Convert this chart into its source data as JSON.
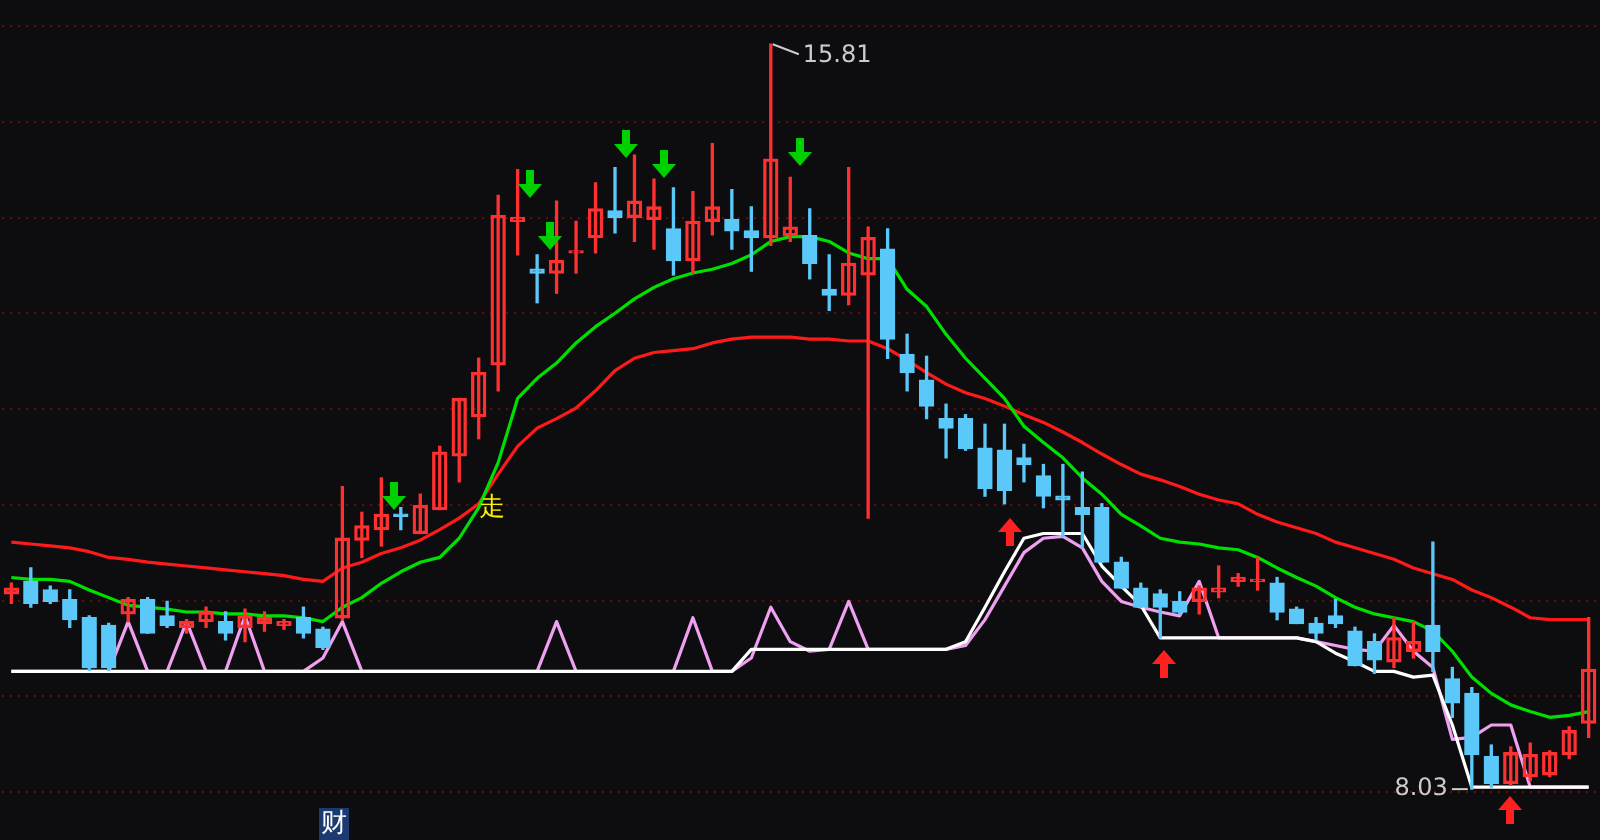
{
  "chart_data": {
    "type": "candlestick",
    "categories": [
      null,
      null,
      null,
      null,
      null,
      null,
      null,
      null,
      null,
      null,
      null,
      null,
      null,
      null,
      null,
      null,
      null,
      null,
      null,
      null,
      null,
      null,
      null,
      null,
      null,
      null,
      null,
      null,
      null,
      null,
      null,
      null,
      null,
      null,
      null,
      null,
      null,
      null,
      null,
      null,
      null,
      null,
      null,
      null,
      null,
      null,
      null,
      null,
      null,
      null,
      null,
      null,
      null,
      null,
      null,
      null,
      null,
      null,
      null,
      null,
      null,
      null,
      null,
      null,
      null,
      null,
      null,
      null,
      null,
      null,
      null,
      null,
      null,
      null,
      null,
      null,
      null,
      null,
      null,
      null,
      null,
      null
    ],
    "ohlc": [
      [
        10.07,
        10.18,
        9.97,
        10.13
      ],
      [
        10.2,
        10.34,
        9.93,
        9.97
      ],
      [
        10.11,
        10.15,
        9.97,
        9.99
      ],
      [
        10.01,
        10.11,
        9.72,
        9.8
      ],
      [
        9.82,
        9.84,
        9.27,
        9.3
      ],
      [
        9.74,
        9.76,
        9.27,
        9.3
      ],
      [
        9.86,
        10.03,
        9.78,
        10.01
      ],
      [
        10.01,
        10.03,
        9.66,
        9.66
      ],
      [
        9.84,
        9.99,
        9.72,
        9.74
      ],
      [
        9.72,
        9.8,
        9.66,
        9.78
      ],
      [
        9.78,
        9.93,
        9.72,
        9.88
      ],
      [
        9.78,
        9.88,
        9.59,
        9.66
      ],
      [
        9.72,
        9.91,
        9.57,
        9.84
      ],
      [
        9.76,
        9.88,
        9.68,
        9.82
      ],
      [
        9.74,
        9.8,
        9.7,
        9.78
      ],
      [
        9.82,
        9.93,
        9.61,
        9.66
      ],
      [
        9.7,
        9.72,
        9.49,
        9.51
      ],
      [
        9.82,
        11.19,
        9.8,
        10.65
      ],
      [
        10.63,
        10.92,
        10.45,
        10.78
      ],
      [
        10.74,
        11.28,
        10.57,
        10.9
      ],
      [
        10.9,
        10.97,
        10.74,
        10.88
      ],
      [
        10.7,
        11.11,
        10.7,
        10.99
      ],
      [
        10.95,
        11.61,
        10.95,
        11.55
      ],
      [
        11.51,
        12.11,
        11.24,
        12.11
      ],
      [
        11.92,
        12.53,
        11.69,
        12.38
      ],
      [
        12.46,
        14.23,
        12.19,
        14.02
      ],
      [
        13.96,
        14.5,
        13.61,
        14.0
      ],
      [
        13.46,
        13.61,
        13.11,
        13.42
      ],
      [
        13.42,
        14.17,
        13.21,
        13.55
      ],
      [
        13.63,
        13.96,
        13.42,
        13.65
      ],
      [
        13.79,
        14.36,
        13.63,
        14.09
      ],
      [
        14.07,
        14.52,
        13.84,
        14.0
      ],
      [
        14.0,
        14.65,
        13.75,
        14.17
      ],
      [
        13.98,
        14.4,
        13.67,
        14.11
      ],
      [
        13.88,
        14.31,
        13.4,
        13.55
      ],
      [
        13.55,
        14.27,
        13.42,
        13.96
      ],
      [
        13.96,
        14.77,
        13.82,
        14.11
      ],
      [
        13.98,
        14.29,
        13.67,
        13.86
      ],
      [
        13.86,
        14.11,
        13.44,
        13.79
      ],
      [
        13.79,
        15.81,
        13.71,
        14.61
      ],
      [
        13.81,
        14.42,
        13.75,
        13.9
      ],
      [
        13.81,
        14.09,
        13.36,
        13.52
      ],
      [
        13.25,
        13.61,
        13.03,
        13.19
      ],
      [
        13.19,
        14.52,
        13.09,
        13.52
      ],
      [
        13.4,
        13.9,
        10.86,
        13.79
      ],
      [
        13.67,
        13.88,
        12.53,
        12.73
      ],
      [
        12.57,
        12.78,
        12.19,
        12.38
      ],
      [
        12.3,
        12.55,
        11.9,
        12.03
      ],
      [
        11.9,
        12.05,
        11.49,
        11.8
      ],
      [
        11.9,
        11.94,
        11.57,
        11.59
      ],
      [
        11.59,
        11.84,
        11.09,
        11.17
      ],
      [
        11.57,
        11.84,
        11.01,
        11.15
      ],
      [
        11.49,
        11.63,
        11.24,
        11.42
      ],
      [
        11.3,
        11.42,
        10.97,
        11.09
      ],
      [
        11.09,
        11.42,
        10.67,
        11.05
      ],
      [
        10.97,
        11.34,
        10.55,
        10.9
      ],
      [
        10.97,
        11.01,
        10.4,
        10.4
      ],
      [
        10.4,
        10.45,
        10.13,
        10.13
      ],
      [
        10.13,
        10.18,
        9.93,
        9.93
      ],
      [
        10.07,
        10.11,
        9.61,
        9.93
      ],
      [
        9.99,
        10.09,
        9.86,
        9.88
      ],
      [
        9.99,
        10.15,
        9.86,
        10.13
      ],
      [
        10.09,
        10.36,
        10.03,
        10.13
      ],
      [
        10.2,
        10.28,
        10.15,
        10.24
      ],
      [
        10.2,
        10.45,
        10.11,
        10.22
      ],
      [
        10.18,
        10.24,
        9.8,
        9.88
      ],
      [
        9.91,
        9.93,
        9.76,
        9.76
      ],
      [
        9.76,
        9.82,
        9.59,
        9.66
      ],
      [
        9.84,
        10.01,
        9.72,
        9.76
      ],
      [
        9.68,
        9.72,
        9.32,
        9.32
      ],
      [
        9.57,
        9.65,
        9.24,
        9.38
      ],
      [
        9.36,
        9.82,
        9.3,
        9.61
      ],
      [
        9.47,
        9.78,
        9.4,
        9.57
      ],
      [
        9.74,
        10.61,
        9.26,
        9.47
      ],
      [
        9.18,
        9.3,
        8.78,
        8.93
      ],
      [
        9.03,
        9.09,
        8.03,
        8.39
      ],
      [
        8.37,
        8.49,
        8.05,
        8.09
      ],
      [
        8.09,
        8.47,
        8.07,
        8.41
      ],
      [
        8.16,
        8.51,
        8.12,
        8.39
      ],
      [
        8.18,
        8.43,
        8.16,
        8.41
      ],
      [
        8.39,
        8.68,
        8.35,
        8.64
      ],
      [
        8.72,
        9.82,
        8.57,
        9.28
      ]
    ],
    "colors": [
      "#ff3030",
      "#5bc8fa",
      "#5bc8fa",
      "#5bc8fa",
      "#5bc8fa",
      "#5bc8fa",
      "#ff3030",
      "#5bc8fa",
      "#5bc8fa",
      "#ff3030",
      "#ff3030",
      "#5bc8fa",
      "#ff3030",
      "#ff3030",
      "#ff3030",
      "#5bc8fa",
      "#5bc8fa",
      "#ff3030",
      "#ff3030",
      "#ff3030",
      "#5bc8fa",
      "#ff3030",
      "#ff3030",
      "#ff3030",
      "#ff3030",
      "#ff3030",
      "#ff3030",
      "#5bc8fa",
      "#ff3030",
      "#ff3030",
      "#ff3030",
      "#5bc8fa",
      "#ff3030",
      "#ff3030",
      "#5bc8fa",
      "#ff3030",
      "#ff3030",
      "#5bc8fa",
      "#5bc8fa",
      "#ff3030",
      "#ff3030",
      "#5bc8fa",
      "#5bc8fa",
      "#ff3030",
      "#ff3030",
      "#5bc8fa",
      "#5bc8fa",
      "#5bc8fa",
      "#5bc8fa",
      "#5bc8fa",
      "#5bc8fa",
      "#5bc8fa",
      "#5bc8fa",
      "#5bc8fa",
      "#5bc8fa",
      "#5bc8fa",
      "#5bc8fa",
      "#5bc8fa",
      "#5bc8fa",
      "#5bc8fa",
      "#5bc8fa",
      "#ff3030",
      "#ff3030",
      "#ff3030",
      "#ff3030",
      "#5bc8fa",
      "#5bc8fa",
      "#5bc8fa",
      "#5bc8fa",
      "#5bc8fa",
      "#5bc8fa",
      "#ff3030",
      "#ff3030",
      "#5bc8fa",
      "#5bc8fa",
      "#5bc8fa",
      "#5bc8fa",
      "#ff3030",
      "#ff3030",
      "#ff3030",
      "#ff3030",
      "#ff3030"
    ],
    "series": [
      {
        "type": "line",
        "color": "#00e000",
        "values": [
          10.24,
          10.22,
          10.22,
          10.2,
          10.11,
          10.03,
          9.95,
          9.93,
          9.91,
          9.88,
          9.88,
          9.86,
          9.86,
          9.84,
          9.84,
          9.82,
          9.78,
          9.93,
          10.03,
          10.18,
          10.3,
          10.4,
          10.45,
          10.65,
          10.97,
          11.44,
          12.11,
          12.32,
          12.48,
          12.69,
          12.86,
          13.0,
          13.15,
          13.27,
          13.36,
          13.42,
          13.46,
          13.52,
          13.61,
          13.75,
          13.8,
          13.8,
          13.75,
          13.63,
          13.57,
          13.57,
          13.25,
          13.07,
          12.78,
          12.53,
          12.32,
          12.11,
          11.82,
          11.65,
          11.49,
          11.28,
          11.11,
          10.9,
          10.78,
          10.65,
          10.61,
          10.59,
          10.55,
          10.53,
          10.45,
          10.34,
          10.24,
          10.15,
          10.03,
          9.93,
          9.86,
          9.82,
          9.78,
          9.68,
          9.47,
          9.2,
          9.03,
          8.91,
          8.84,
          8.78,
          8.8,
          8.84
        ]
      },
      {
        "type": "line",
        "color": "#ff1a1a",
        "values": [
          10.61,
          10.59,
          10.57,
          10.55,
          10.51,
          10.45,
          10.43,
          10.4,
          10.38,
          10.36,
          10.34,
          10.32,
          10.3,
          10.28,
          10.26,
          10.22,
          10.2,
          10.34,
          10.4,
          10.49,
          10.55,
          10.63,
          10.74,
          10.86,
          11.01,
          11.32,
          11.61,
          11.8,
          11.9,
          12.01,
          12.19,
          12.4,
          12.53,
          12.59,
          12.61,
          12.63,
          12.69,
          12.73,
          12.75,
          12.75,
          12.75,
          12.73,
          12.73,
          12.71,
          12.71,
          12.63,
          12.51,
          12.38,
          12.26,
          12.17,
          12.11,
          12.03,
          11.94,
          11.86,
          11.76,
          11.65,
          11.53,
          11.42,
          11.32,
          11.26,
          11.19,
          11.11,
          11.05,
          11.01,
          10.9,
          10.82,
          10.76,
          10.7,
          10.61,
          10.55,
          10.49,
          10.43,
          10.34,
          10.28,
          10.22,
          10.11,
          10.03,
          9.93,
          9.82,
          9.8,
          9.8,
          9.8
        ]
      },
      {
        "type": "line",
        "color": "#ffffff",
        "values": [
          9.26,
          9.26,
          9.26,
          9.26,
          9.26,
          9.26,
          9.26,
          9.26,
          9.26,
          9.26,
          9.26,
          9.26,
          9.26,
          9.26,
          9.26,
          9.26,
          9.26,
          9.26,
          9.26,
          9.26,
          9.26,
          9.26,
          9.26,
          9.26,
          9.26,
          9.26,
          9.26,
          9.26,
          9.26,
          9.26,
          9.26,
          9.26,
          9.26,
          9.26,
          9.26,
          9.26,
          9.26,
          9.26,
          9.49,
          9.49,
          9.49,
          9.49,
          9.49,
          9.49,
          9.49,
          9.49,
          9.49,
          9.49,
          9.49,
          9.57,
          9.93,
          10.3,
          10.65,
          10.7,
          10.7,
          10.7,
          10.36,
          10.15,
          9.95,
          9.61,
          9.61,
          9.61,
          9.61,
          9.61,
          9.61,
          9.61,
          9.61,
          9.57,
          9.45,
          9.36,
          9.26,
          9.26,
          9.2,
          9.22,
          8.7,
          8.05,
          8.05,
          8.05,
          8.05,
          8.05,
          8.05,
          8.05
        ]
      },
      {
        "type": "line",
        "color": "#f0a0f0",
        "values": [
          9.26,
          9.26,
          9.26,
          9.26,
          9.26,
          9.26,
          9.78,
          9.26,
          9.26,
          9.78,
          9.26,
          9.26,
          9.84,
          9.26,
          9.26,
          9.26,
          9.4,
          9.78,
          9.26,
          9.26,
          9.26,
          9.26,
          9.26,
          9.26,
          9.26,
          9.26,
          9.26,
          9.26,
          9.78,
          9.26,
          9.26,
          9.26,
          9.26,
          9.26,
          9.26,
          9.82,
          9.26,
          9.26,
          9.4,
          9.93,
          9.57,
          9.47,
          9.49,
          9.99,
          9.49,
          9.49,
          9.49,
          9.49,
          9.49,
          9.53,
          9.8,
          10.15,
          10.5,
          10.65,
          10.67,
          10.55,
          10.2,
          9.99,
          9.93,
          9.88,
          9.84,
          10.2,
          9.61,
          9.61,
          9.61,
          9.61,
          9.61,
          9.57,
          9.53,
          9.49,
          9.47,
          9.74,
          9.47,
          9.3,
          8.55,
          8.57,
          8.7,
          8.7,
          8.05,
          8.05,
          8.05,
          8.05
        ]
      }
    ],
    "ylim": [
      8,
      16
    ],
    "yticks": [
      {
        "value": 8,
        "label": null
      },
      {
        "value": 9,
        "label": null
      },
      {
        "value": 10,
        "label": null
      },
      {
        "value": 11,
        "label": null
      },
      {
        "value": 12,
        "label": null
      },
      {
        "value": 13,
        "label": null
      },
      {
        "value": 14,
        "label": null
      },
      {
        "value": 15,
        "label": null
      },
      {
        "value": 16,
        "label": null
      }
    ],
    "grid": "y",
    "legend": false,
    "annotations": [
      "15.81",
      "8.03",
      "走",
      "财"
    ]
  }
}
